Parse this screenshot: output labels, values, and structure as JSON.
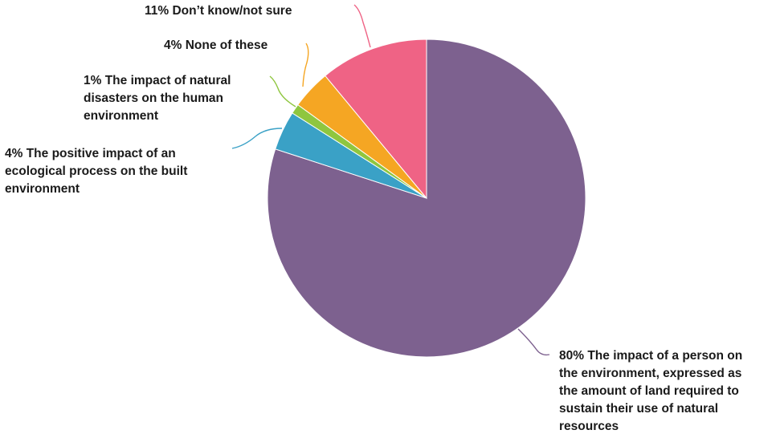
{
  "chart_data": {
    "type": "pie",
    "title": "",
    "slices": [
      {
        "pct": 80,
        "value_label": "80%",
        "label": "The impact of a person on the environment, expressed as the amount of land required to sustain their use of natural resources",
        "color": "#7d618f"
      },
      {
        "pct": 4,
        "value_label": "4%",
        "label": "The positive impact of an ecological process on the built environment",
        "color": "#3aa1c6"
      },
      {
        "pct": 1,
        "value_label": "1%",
        "label": "The impact of natural disasters on the human environment",
        "color": "#8fc63f"
      },
      {
        "pct": 4,
        "value_label": "4%",
        "label": "None of these",
        "color": "#f5a623"
      },
      {
        "pct": 11,
        "value_label": "11%",
        "label": "Don’t know/not sure",
        "color": "#ef6385"
      }
    ],
    "label_lines": [
      [
        "80% The impact of a person on",
        "the environment, expressed as",
        "the amount of land required to",
        "sustain their use of natural",
        "resources"
      ],
      [
        "4% The positive impact of an",
        "ecological process on the built",
        "environment"
      ],
      [
        "1% The impact of natural",
        "disasters on the human",
        "environment"
      ],
      [
        "4% None of these"
      ],
      [
        "11% Don’t know/not sure"
      ]
    ]
  }
}
